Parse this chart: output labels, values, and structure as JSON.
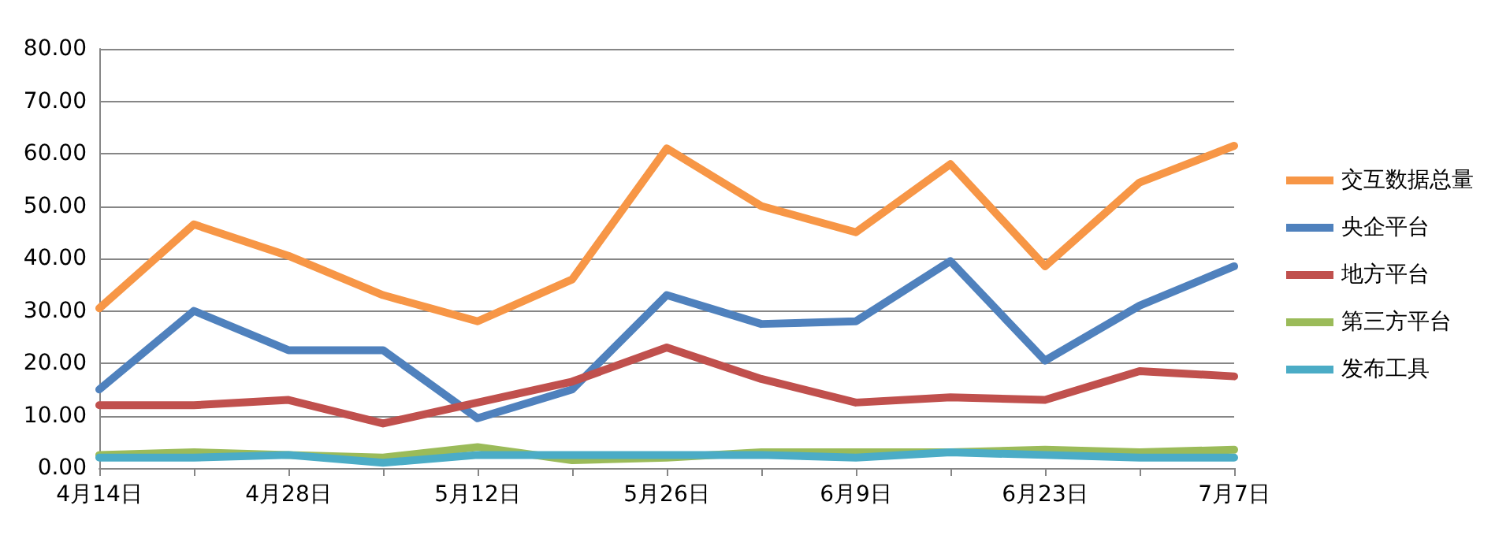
{
  "chart_data": {
    "type": "line",
    "categories": [
      "4月14日",
      null,
      "4月28日",
      null,
      "5月12日",
      null,
      "5月26日",
      null,
      "6月9日",
      null,
      "6月23日",
      null,
      "7月7日"
    ],
    "series": [
      {
        "name": "交互数据总量",
        "color": "#f79646",
        "values": [
          30.5,
          46.5,
          40.5,
          33,
          28,
          36,
          61,
          50,
          45,
          58,
          38.5,
          54.5,
          61.5
        ]
      },
      {
        "name": "央企平台",
        "color": "#4f81bd",
        "values": [
          15,
          30,
          22.5,
          22.5,
          9.5,
          15,
          33,
          27.5,
          28,
          39.5,
          20.5,
          31,
          38.5
        ]
      },
      {
        "name": "地方平台",
        "color": "#c0504d",
        "values": [
          12,
          12,
          13,
          8.5,
          12.5,
          16.5,
          23,
          17,
          12.5,
          13.5,
          13,
          18.5,
          17.5
        ]
      },
      {
        "name": "第三方平台",
        "color": "#9bbb59",
        "values": [
          2.5,
          3,
          2.5,
          2,
          4,
          1.5,
          2,
          3,
          3,
          3,
          3.5,
          3,
          3.5
        ]
      },
      {
        "name": "发布工具",
        "color": "#4bacc6",
        "values": [
          2,
          2,
          2.5,
          1,
          2.5,
          2.5,
          2.5,
          2.5,
          2,
          3,
          2.5,
          2,
          2
        ]
      }
    ],
    "ylim": [
      0,
      80
    ],
    "yticks": [
      {
        "value": 0,
        "label": "0.00"
      },
      {
        "value": 10,
        "label": "10.00"
      },
      {
        "value": 20,
        "label": "20.00"
      },
      {
        "value": 30,
        "label": "30.00"
      },
      {
        "value": 40,
        "label": "40.00"
      },
      {
        "value": 50,
        "label": "50.00"
      },
      {
        "value": 60,
        "label": "60.00"
      },
      {
        "value": 70,
        "label": "70.00"
      },
      {
        "value": 80,
        "label": "80.00"
      }
    ],
    "grid": "y",
    "legend": "right",
    "marker": "none",
    "line_style": "solid"
  }
}
